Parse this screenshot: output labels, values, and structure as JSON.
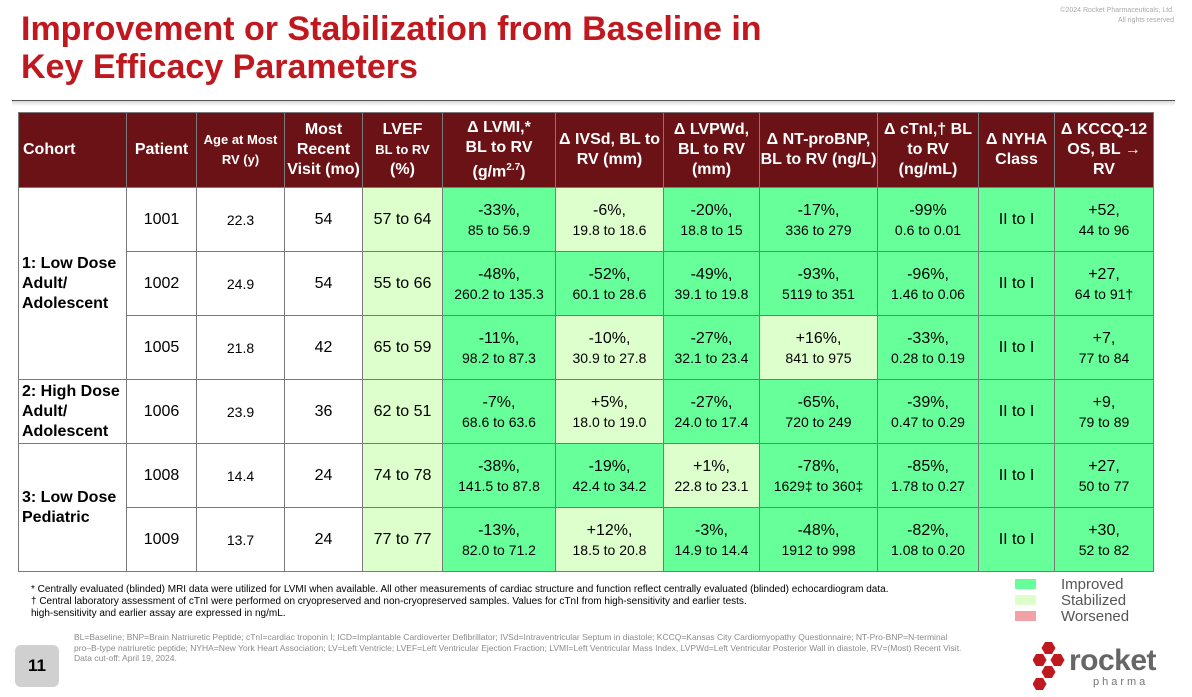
{
  "title_line1": "Improvement or Stabilization from Baseline in",
  "title_line2": "Key Efficacy Parameters",
  "copyright_line1": "©2024 Rocket Pharmaceuticals, Ltd.",
  "copyright_line2": "All rights reserved",
  "headers": {
    "cohort": "Cohort",
    "patient": "Patient",
    "age": "Age at Most RV (y)",
    "visit": "Most Recent Visit (mo)",
    "lvef_1": "LVEF",
    "lvef_2": "BL to RV",
    "lvef_3": "(%)",
    "lvmi_1": "Δ LVMI,*",
    "lvmi_2": "BL to RV",
    "lvmi_3": "(g/m",
    "lvmi_sup": "2.7",
    "lvmi_4": ")",
    "ivsd": "Δ IVSd, BL to RV (mm)",
    "lvpwd": "Δ LVPWd, BL to RV (mm)",
    "ntprobnp": "Δ NT-proBNP, BL to RV (ng/L)",
    "ctni": "Δ cTnI,† BL to RV (ng/mL)",
    "nyha": "Δ NYHA Class",
    "kccq": "Δ KCCQ-12 OS, BL → RV"
  },
  "cohorts": {
    "c1": "1: Low Dose Adult/ Adolescent",
    "c2": "2: High Dose Adult/ Adolescent",
    "c3": "3: Low Dose Pediatric"
  },
  "rows": [
    {
      "patient": "1001",
      "age": "22.3",
      "visit": "54",
      "lvef": "57 to 64",
      "lvmi": [
        "-33%,",
        "85 to 56.9"
      ],
      "ivsd": [
        "-6%,",
        "19.8 to 18.6"
      ],
      "lvpwd": [
        "-20%,",
        "18.8  to 15"
      ],
      "ntprobnp": [
        "-17%,",
        "336 to 279"
      ],
      "ctni": [
        "-99%",
        "0.6 to 0.01"
      ],
      "nyha": "II to I",
      "kccq": [
        "+52,",
        "44 to 96"
      ]
    },
    {
      "patient": "1002",
      "age": "24.9",
      "visit": "54",
      "lvef": "55 to 66",
      "lvmi": [
        "-48%,",
        "260.2 to 135.3"
      ],
      "ivsd": [
        "-52%,",
        "60.1 to 28.6"
      ],
      "lvpwd": [
        "-49%,",
        "39.1 to 19.8"
      ],
      "ntprobnp": [
        "-93%,",
        "5119 to 351"
      ],
      "ctni": [
        "-96%,",
        "1.46 to 0.06"
      ],
      "nyha": "II to I",
      "kccq": [
        "+27,",
        "64 to 91†"
      ]
    },
    {
      "patient": "1005",
      "age": "21.8",
      "visit": "42",
      "lvef": "65 to 59",
      "lvmi": [
        "-11%,",
        "98.2 to 87.3"
      ],
      "ivsd": [
        "-10%,",
        "30.9 to 27.8"
      ],
      "lvpwd": [
        "-27%,",
        "32.1 to 23.4"
      ],
      "ntprobnp": [
        "+16%,",
        "841 to 975"
      ],
      "ctni": [
        "-33%,",
        "0.28 to 0.19"
      ],
      "nyha": "II to I",
      "kccq": [
        "+7,",
        "77 to 84"
      ]
    },
    {
      "patient": "1006",
      "age": "23.9",
      "visit": "36",
      "lvef": "62 to 51",
      "lvmi": [
        "-7%,",
        "68.6 to 63.6"
      ],
      "ivsd": [
        "+5%,",
        "18.0 to 19.0"
      ],
      "lvpwd": [
        "-27%,",
        "24.0 to 17.4"
      ],
      "ntprobnp": [
        "-65%,",
        "720 to 249"
      ],
      "ctni": [
        "-39%,",
        "0.47 to 0.29"
      ],
      "nyha": "II to I",
      "kccq": [
        "+9,",
        "79 to 89"
      ]
    },
    {
      "patient": "1008",
      "age": "14.4",
      "visit": "24",
      "lvef": "74 to 78",
      "lvmi": [
        "-38%,",
        "141.5 to 87.8"
      ],
      "ivsd": [
        "-19%,",
        "42.4 to 34.2"
      ],
      "lvpwd": [
        "+1%,",
        "22.8 to 23.1"
      ],
      "ntprobnp": [
        "-78%,",
        "1629‡ to 360‡"
      ],
      "ctni": [
        "-85%,",
        "1.78 to 0.27"
      ],
      "nyha": "II to I",
      "kccq": [
        "+27,",
        "50 to 77"
      ]
    },
    {
      "patient": "1009",
      "age": "13.7",
      "visit": "24",
      "lvef": "77 to 77",
      "lvmi": [
        "-13%,",
        "82.0 to 71.2"
      ],
      "ivsd": [
        "+12%,",
        "18.5 to 20.8"
      ],
      "lvpwd": [
        "-3%,",
        "14.9 to 14.4"
      ],
      "ntprobnp": [
        "-48%,",
        "1912 to 998"
      ],
      "ctni": [
        "-82%,",
        "1.08 to 0.20"
      ],
      "nyha": "II to I",
      "kccq": [
        "+30,",
        "52 to 82"
      ]
    }
  ],
  "notes": {
    "n1": "* Centrally evaluated (blinded) MRI data were utilized for LVMI when available. All other measurements of cardiac structure and function reflect centrally evaluated (blinded) echocardiogram data.",
    "n2": "† Central laboratory assessment of cTnI were performed on cryopreserved and non-cryopreserved samples. Values for cTnI from high-sensitivity and earlier tests.",
    "n3": "high-sensitivity and earlier assay are expressed in ng/mL."
  },
  "legend": {
    "improved": "Improved",
    "stabilized": "Stabilized",
    "worsened": "Worsened",
    "improved_color": "#66ff99",
    "stabilized_color": "#ddffcc",
    "worsened_color": "#f2a1a7"
  },
  "footnote": "BL=Baseline; BNP=Brain Natriuretic Peptide; cTnI=cardiac troponin I; ICD=Implantable Cardioverter Defibrillator; IVSd=Intraventricular Septum in diastole; KCCQ=Kansas City Cardiomyopathy Questionnaire; NT-Pro-BNP=N-terminal pro–B-type natriuretic peptide; NYHA=New York Heart Association; LV=Left Ventricle; LVEF=Left Ventricular Ejection Fraction; LVMI=Left Ventricular Mass Index, LVPWd=Left Ventricular Posterior Wall in diastole, RV=(Most) Recent Visit.",
  "cutoff": "Data cut-off: April 19, 2024.",
  "page_number": "11",
  "logo": {
    "word": "rocket",
    "sub": "pharma",
    "hex_color": "#c0181f"
  }
}
